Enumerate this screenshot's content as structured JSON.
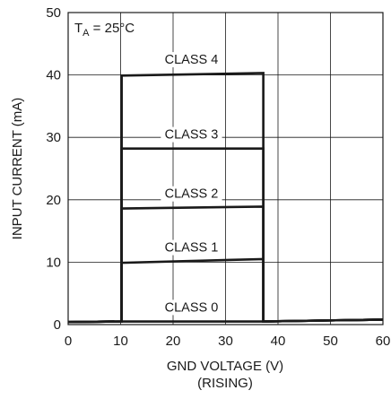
{
  "chart_data": {
    "type": "line",
    "title": "",
    "annotation": {
      "prefix": "T",
      "subscript": "A",
      "suffix": " = 25°C"
    },
    "xlabel": "GND VOLTAGE (V)",
    "xlabel_sub": "(RISING)",
    "ylabel": "INPUT CURRENT (mA)",
    "xlim": [
      0,
      60
    ],
    "ylim": [
      0,
      50
    ],
    "x_ticks": [
      0,
      10,
      20,
      30,
      40,
      50,
      60
    ],
    "y_ticks": [
      0,
      10,
      20,
      30,
      40,
      50
    ],
    "grid": true,
    "series": [
      {
        "name": "CLASS 0",
        "x": [
          0,
          10.2,
          10.2,
          37.2,
          37.2,
          60
        ],
        "y": [
          0.4,
          0.5,
          0.5,
          0.5,
          0.5,
          0.8
        ]
      },
      {
        "name": "CLASS 1",
        "x": [
          0,
          10.2,
          10.2,
          37.2,
          37.2,
          60
        ],
        "y": [
          0.4,
          0.5,
          9.9,
          10.5,
          0.5,
          0.8
        ]
      },
      {
        "name": "CLASS 2",
        "x": [
          0,
          10.2,
          10.2,
          37.2,
          37.2,
          60
        ],
        "y": [
          0.4,
          0.5,
          18.6,
          18.9,
          0.5,
          0.8
        ]
      },
      {
        "name": "CLASS 3",
        "x": [
          0,
          10.2,
          10.2,
          37.2,
          37.2,
          60
        ],
        "y": [
          0.4,
          0.5,
          28.2,
          28.2,
          0.5,
          0.8
        ]
      },
      {
        "name": "CLASS 4",
        "x": [
          0,
          10.2,
          10.2,
          37.2,
          37.2,
          60
        ],
        "y": [
          0.4,
          0.5,
          39.9,
          40.3,
          0.5,
          0.8
        ]
      }
    ],
    "series_labels": [
      {
        "text": "CLASS 4",
        "x": 23.5,
        "y": 41.8
      },
      {
        "text": "CLASS 3",
        "x": 23.5,
        "y": 29.8
      },
      {
        "text": "CLASS 2",
        "x": 23.5,
        "y": 20.3
      },
      {
        "text": "CLASS 1",
        "x": 23.5,
        "y": 11.7
      },
      {
        "text": "CLASS 0",
        "x": 23.5,
        "y": 2.1
      }
    ]
  }
}
